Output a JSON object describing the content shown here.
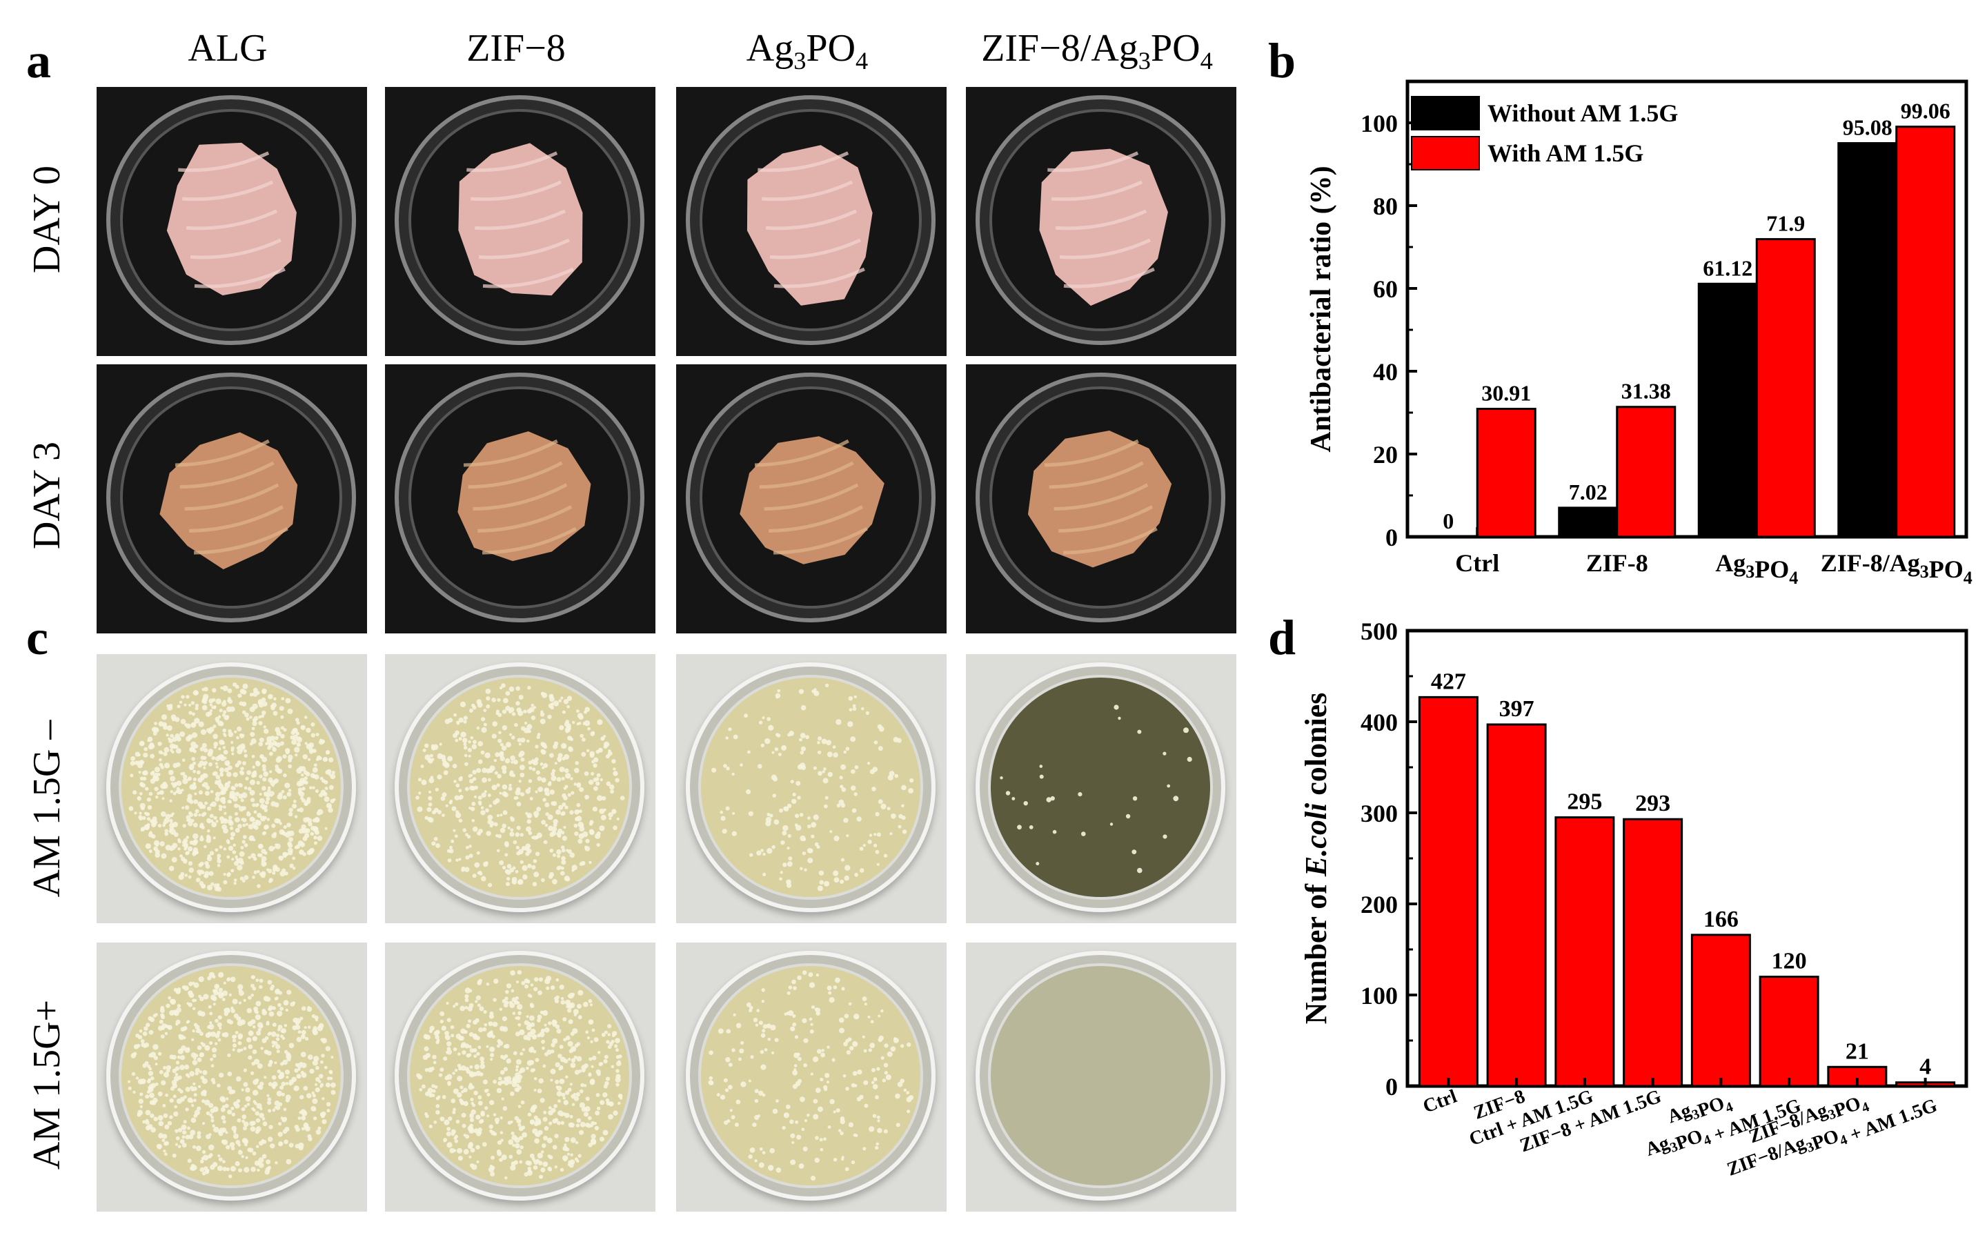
{
  "panels": {
    "a": "a",
    "b": "b",
    "c": "c",
    "d": "d"
  },
  "columns": [
    "ALG",
    "ZIF−8",
    "Ag3PO4",
    "ZIF−8/Ag3PO4"
  ],
  "rows_a": [
    "DAY 0",
    "DAY 3"
  ],
  "rows_c": [
    "AM 1.5G –",
    "AM 1.5G+"
  ],
  "colors": {
    "without": "#000000",
    "with": "#ff0000",
    "bar_d": "#ff0000"
  },
  "chart_data": [
    {
      "type": "bar",
      "panel": "b",
      "categories": [
        "Ctrl",
        "ZIF-8",
        "Ag3PO4",
        "ZIF-8/Ag3PO4"
      ],
      "series": [
        {
          "name": "Without AM 1.5G",
          "values": [
            0,
            7.02,
            61.12,
            95.08
          ]
        },
        {
          "name": "With AM 1.5G",
          "values": [
            30.91,
            31.38,
            71.9,
            99.06
          ]
        }
      ],
      "data_labels": {
        "Without AM 1.5G": [
          "0",
          "7.02",
          "61.12",
          "95.08"
        ],
        "With AM 1.5G": [
          "30.91",
          "31.38",
          "71.9",
          "99.06"
        ]
      },
      "ylabel": "Antibacterial ratio (%)",
      "ylim": [
        0,
        110
      ],
      "yticks": [
        0,
        20,
        40,
        60,
        80,
        100
      ],
      "legend": "top-left"
    },
    {
      "type": "bar",
      "panel": "d",
      "categories": [
        "Ctrl",
        "ZIF−8",
        "Ctrl + AM 1.5G",
        "ZIF−8 + AM 1.5G",
        "Ag3PO4",
        "Ag3PO4 + AM 1.5G",
        "ZIF−8/Ag3PO4",
        "ZIF−8/Ag3PO4 + AM 1.5G"
      ],
      "values": [
        427,
        397,
        295,
        293,
        166,
        120,
        21,
        4
      ],
      "data_labels": [
        "427",
        "397",
        "295",
        "293",
        "166",
        "120",
        "21",
        "4"
      ],
      "ylabel_parts": [
        "Number of ",
        "E.coli",
        " colonies"
      ],
      "ylim": [
        0,
        500
      ],
      "yticks": [
        0,
        100,
        200,
        300,
        400,
        500
      ]
    }
  ],
  "photos": {
    "day0_meat_color": "#e2b3ad",
    "day3_meat_color": "#c98f6a",
    "agar_color": "#d9d2a0",
    "colony_counts": [
      [
        900,
        560,
        200,
        28
      ],
      [
        700,
        640,
        230,
        0
      ]
    ]
  }
}
